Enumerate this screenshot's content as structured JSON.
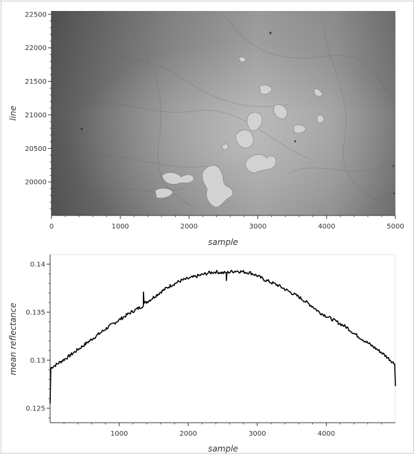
{
  "chart_data": [
    {
      "type": "heatmap",
      "xlabel": "sample",
      "ylabel": "line",
      "xlim": [
        0,
        5000
      ],
      "ylim": [
        19500,
        22550
      ],
      "x_ticks": [
        "0",
        "1000",
        "2000",
        "3000",
        "4000",
        "5000"
      ],
      "y_ticks": [
        "20000",
        "20500",
        "21000",
        "21500",
        "22000",
        "22500"
      ],
      "colormap": "grayscale"
    },
    {
      "type": "line",
      "xlabel": "sample",
      "ylabel": "mean reflectance",
      "xlim": [
        0,
        5000
      ],
      "ylim": [
        0.1235,
        0.141
      ],
      "x_ticks": [
        "1000",
        "2000",
        "3000",
        "4000"
      ],
      "y_ticks": [
        "0.125",
        "0.13",
        "0.135",
        "0.14"
      ],
      "series": [
        {
          "color": "#000000",
          "x": [
            0,
            10,
            100,
            250,
            400,
            550,
            700,
            850,
            1000,
            1150,
            1300,
            1350,
            1352,
            1360,
            1450,
            1600,
            1750,
            1900,
            2000,
            2100,
            2200,
            2300,
            2400,
            2500,
            2550,
            2552,
            2560,
            2600,
            2700,
            2800,
            2900,
            3000,
            3100,
            3200,
            3300,
            3400,
            3500,
            3600,
            3700,
            3800,
            3900,
            4000,
            4100,
            4200,
            4300,
            4400,
            4500,
            4600,
            4700,
            4800,
            4900,
            4990,
            5000
          ],
          "y": [
            0.1255,
            0.1292,
            0.1296,
            0.1303,
            0.1311,
            0.1319,
            0.1327,
            0.1335,
            0.1342,
            0.1349,
            0.1355,
            0.1357,
            0.1371,
            0.1359,
            0.1363,
            0.1371,
            0.1378,
            0.1383,
            0.1385,
            0.1387,
            0.1389,
            0.1391,
            0.1392,
            0.1391,
            0.1391,
            0.1383,
            0.1391,
            0.1392,
            0.1393,
            0.1392,
            0.1391,
            0.1388,
            0.1384,
            0.1381,
            0.1378,
            0.1374,
            0.137,
            0.1366,
            0.1361,
            0.1356,
            0.135,
            0.1346,
            0.1342,
            0.1338,
            0.1334,
            0.1328,
            0.1323,
            0.1318,
            0.1313,
            0.1308,
            0.1302,
            0.1296,
            0.1273
          ]
        }
      ]
    }
  ]
}
